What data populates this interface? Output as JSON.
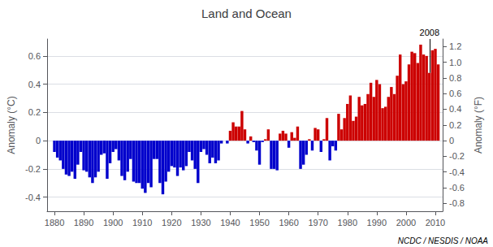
{
  "chart_data": {
    "type": "bar",
    "title": "Land and Ocean",
    "ylabel": "Anomaly (°C)",
    "y2label": "Anomaly (°F)",
    "x": [
      1880,
      1881,
      1882,
      1883,
      1884,
      1885,
      1886,
      1887,
      1888,
      1889,
      1890,
      1891,
      1892,
      1893,
      1894,
      1895,
      1896,
      1897,
      1898,
      1899,
      1900,
      1901,
      1902,
      1903,
      1904,
      1905,
      1906,
      1907,
      1908,
      1909,
      1910,
      1911,
      1912,
      1913,
      1914,
      1915,
      1916,
      1917,
      1918,
      1919,
      1920,
      1921,
      1922,
      1923,
      1924,
      1925,
      1926,
      1927,
      1928,
      1929,
      1930,
      1931,
      1932,
      1933,
      1934,
      1935,
      1936,
      1937,
      1938,
      1939,
      1940,
      1941,
      1942,
      1943,
      1944,
      1945,
      1946,
      1947,
      1948,
      1949,
      1950,
      1951,
      1952,
      1953,
      1954,
      1955,
      1956,
      1957,
      1958,
      1959,
      1960,
      1961,
      1962,
      1963,
      1964,
      1965,
      1966,
      1967,
      1968,
      1969,
      1970,
      1971,
      1972,
      1973,
      1974,
      1975,
      1976,
      1977,
      1978,
      1979,
      1980,
      1981,
      1982,
      1983,
      1984,
      1985,
      1986,
      1987,
      1988,
      1989,
      1990,
      1991,
      1992,
      1993,
      1994,
      1995,
      1996,
      1997,
      1998,
      1999,
      2000,
      2001,
      2002,
      2003,
      2004,
      2005,
      2006,
      2007,
      2008,
      2009,
      2010,
      2011
    ],
    "values": [
      -0.08,
      -0.12,
      -0.14,
      -0.2,
      -0.24,
      -0.25,
      -0.22,
      -0.27,
      -0.17,
      -0.08,
      -0.21,
      -0.22,
      -0.26,
      -0.3,
      -0.26,
      -0.22,
      -0.1,
      -0.09,
      -0.27,
      -0.16,
      -0.08,
      -0.06,
      -0.14,
      -0.25,
      -0.28,
      -0.22,
      -0.13,
      -0.29,
      -0.3,
      -0.3,
      -0.34,
      -0.37,
      -0.3,
      -0.33,
      -0.13,
      -0.13,
      -0.3,
      -0.38,
      -0.29,
      -0.22,
      -0.18,
      -0.19,
      -0.25,
      -0.19,
      -0.21,
      -0.18,
      -0.08,
      -0.14,
      -0.2,
      -0.3,
      -0.08,
      -0.06,
      -0.1,
      -0.16,
      -0.12,
      -0.16,
      -0.14,
      -0.02,
      0.0,
      -0.02,
      0.07,
      0.13,
      0.1,
      0.1,
      0.21,
      0.08,
      -0.02,
      0.03,
      -0.01,
      -0.07,
      -0.17,
      -0.01,
      0.01,
      0.08,
      -0.2,
      -0.2,
      -0.21,
      0.05,
      0.07,
      0.05,
      -0.05,
      0.06,
      0.02,
      0.1,
      -0.2,
      -0.17,
      -0.1,
      0.01,
      -0.07,
      0.09,
      0.08,
      -0.08,
      0.01,
      0.16,
      -0.14,
      -0.04,
      -0.07,
      0.19,
      0.08,
      0.16,
      0.26,
      0.32,
      0.14,
      0.17,
      0.31,
      0.25,
      0.26,
      0.33,
      0.41,
      0.31,
      0.43,
      0.4,
      0.23,
      0.24,
      0.31,
      0.38,
      0.33,
      0.46,
      0.61,
      0.4,
      0.42,
      0.54,
      0.63,
      0.62,
      0.55,
      0.68,
      0.61,
      0.6,
      0.48,
      0.64,
      0.65,
      0.54
    ],
    "colors": [
      "#0000cc",
      "#0000cc",
      "#0000cc",
      "#0000cc",
      "#0000cc",
      "#0000cc",
      "#0000cc",
      "#0000cc",
      "#0000cc",
      "#0000cc",
      "#0000cc",
      "#0000cc",
      "#0000cc",
      "#0000cc",
      "#0000cc",
      "#0000cc",
      "#0000cc",
      "#0000cc",
      "#0000cc",
      "#0000cc",
      "#0000cc",
      "#0000cc",
      "#0000cc",
      "#0000cc",
      "#0000cc",
      "#0000cc",
      "#0000cc",
      "#0000cc",
      "#0000cc",
      "#0000cc",
      "#0000cc",
      "#0000cc",
      "#0000cc",
      "#0000cc",
      "#0000cc",
      "#0000cc",
      "#0000cc",
      "#0000cc",
      "#0000cc",
      "#0000cc",
      "#0000cc",
      "#0000cc",
      "#0000cc",
      "#0000cc",
      "#0000cc",
      "#0000cc",
      "#0000cc",
      "#0000cc",
      "#0000cc",
      "#0000cc",
      "#0000cc",
      "#0000cc",
      "#0000cc",
      "#0000cc",
      "#0000cc",
      "#0000cc",
      "#0000cc",
      "#0000cc",
      "#cc0000",
      "#0000cc",
      "#cc0000",
      "#cc0000",
      "#cc0000",
      "#cc0000",
      "#cc0000",
      "#cc0000",
      "#0000cc",
      "#cc0000",
      "#0000cc",
      "#0000cc",
      "#0000cc",
      "#0000cc",
      "#cc0000",
      "#cc0000",
      "#0000cc",
      "#0000cc",
      "#0000cc",
      "#cc0000",
      "#cc0000",
      "#cc0000",
      "#0000cc",
      "#cc0000",
      "#cc0000",
      "#cc0000",
      "#0000cc",
      "#0000cc",
      "#0000cc",
      "#cc0000",
      "#0000cc",
      "#cc0000",
      "#cc0000",
      "#0000cc",
      "#cc0000",
      "#cc0000",
      "#0000cc",
      "#0000cc",
      "#0000cc",
      "#cc0000",
      "#cc0000",
      "#cc0000",
      "#cc0000",
      "#cc0000",
      "#cc0000",
      "#cc0000",
      "#cc0000",
      "#cc0000",
      "#cc0000",
      "#cc0000",
      "#cc0000",
      "#cc0000",
      "#cc0000",
      "#cc0000",
      "#cc0000",
      "#cc0000",
      "#cc0000",
      "#cc0000",
      "#cc0000",
      "#cc0000",
      "#cc0000",
      "#cc0000",
      "#cc0000",
      "#cc0000",
      "#cc0000",
      "#cc0000",
      "#cc0000",
      "#cc0000",
      "#cc0000",
      "#cc0000",
      "#cc0000",
      "#cc0000",
      "#cc0000",
      "#cc0000"
    ],
    "xlim": [
      1877.5,
      2012.5
    ],
    "xticks": [
      1880,
      1890,
      1900,
      1910,
      1920,
      1930,
      1940,
      1950,
      1960,
      1970,
      1980,
      1990,
      2000,
      2010
    ],
    "ylim": [
      -0.5,
      0.72
    ],
    "yticks": [
      -0.4,
      -0.2,
      0,
      0.2,
      0.4,
      0.6
    ],
    "y2lim": [
      -0.9,
      1.296
    ],
    "y2ticks": [
      -0.8,
      -0.6,
      -0.4,
      -0.2,
      0,
      0.2,
      0.4,
      0.6,
      0.8,
      {
        "value": 1.0,
        "label": "1.0"
      },
      1.2
    ],
    "grid": true,
    "annotations": [
      {
        "text": "2008",
        "x": 2008
      },
      {
        "text": "NCDC / NESDIS / NOAA"
      }
    ]
  }
}
